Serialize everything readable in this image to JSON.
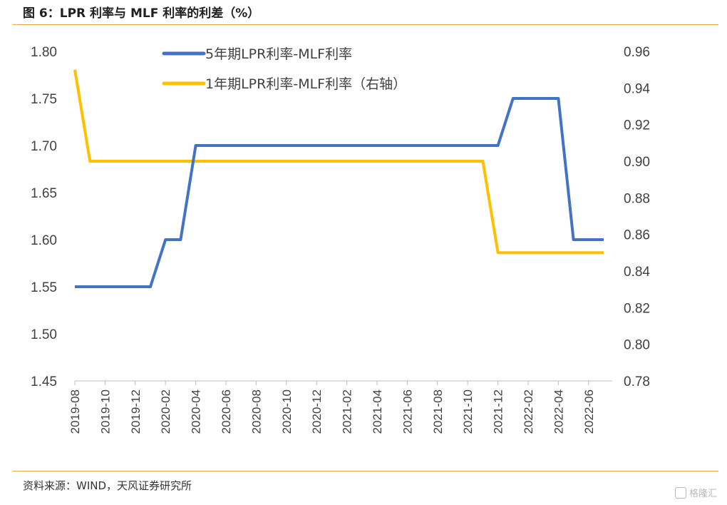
{
  "figure": {
    "title": "图 6：LPR 利率与 MLF 利率的利差（%）",
    "source": "资料来源：WIND，天风证券研究所",
    "watermark": "格隆汇"
  },
  "chart_data": {
    "type": "line",
    "title": "图 6：LPR 利率与 MLF 利率的利差（%）",
    "x_ticks": [
      "2019-08",
      "2019-10",
      "2019-12",
      "2020-02",
      "2020-04",
      "2020-06",
      "2020-08",
      "2020-10",
      "2020-12",
      "2021-02",
      "2021-04",
      "2021-06",
      "2021-08",
      "2021-10",
      "2021-12",
      "2022-02",
      "2022-04",
      "2022-06"
    ],
    "x": [
      "2019-08",
      "2019-09",
      "2019-10",
      "2019-11",
      "2019-12",
      "2020-01",
      "2020-02",
      "2020-03",
      "2020-04",
      "2020-05",
      "2020-06",
      "2020-07",
      "2020-08",
      "2020-09",
      "2020-10",
      "2020-11",
      "2020-12",
      "2021-01",
      "2021-02",
      "2021-03",
      "2021-04",
      "2021-05",
      "2021-06",
      "2021-07",
      "2021-08",
      "2021-09",
      "2021-10",
      "2021-11",
      "2021-12",
      "2022-01",
      "2022-02",
      "2022-03",
      "2022-04",
      "2022-05",
      "2022-06",
      "2022-07"
    ],
    "y_left": {
      "ylim": [
        1.45,
        1.8
      ],
      "ticks": [
        "1.45",
        "1.50",
        "1.55",
        "1.60",
        "1.65",
        "1.70",
        "1.75",
        "1.80"
      ]
    },
    "y_right": {
      "ylim": [
        0.78,
        0.96
      ],
      "ticks": [
        "0.78",
        "0.80",
        "0.82",
        "0.84",
        "0.86",
        "0.88",
        "0.90",
        "0.92",
        "0.94",
        "0.96"
      ]
    },
    "series": [
      {
        "name": "5年期LPR利率-MLF利率",
        "axis": "left",
        "color": "#4472c4",
        "values": [
          1.55,
          1.55,
          1.55,
          1.55,
          1.55,
          1.55,
          1.6,
          1.6,
          1.7,
          1.7,
          1.7,
          1.7,
          1.7,
          1.7,
          1.7,
          1.7,
          1.7,
          1.7,
          1.7,
          1.7,
          1.7,
          1.7,
          1.7,
          1.7,
          1.7,
          1.7,
          1.7,
          1.7,
          1.7,
          1.75,
          1.75,
          1.75,
          1.75,
          1.6,
          1.6,
          1.6
        ]
      },
      {
        "name": "1年期LPR利率-MLF利率（右轴）",
        "axis": "right",
        "color": "#ffc000",
        "values": [
          0.95,
          0.9,
          0.9,
          0.9,
          0.9,
          0.9,
          0.9,
          0.9,
          0.9,
          0.9,
          0.9,
          0.9,
          0.9,
          0.9,
          0.9,
          0.9,
          0.9,
          0.9,
          0.9,
          0.9,
          0.9,
          0.9,
          0.9,
          0.9,
          0.9,
          0.9,
          0.9,
          0.9,
          0.85,
          0.85,
          0.85,
          0.85,
          0.85,
          0.85,
          0.85,
          0.85
        ]
      }
    ],
    "legend_position": "top-center",
    "grid": false
  }
}
